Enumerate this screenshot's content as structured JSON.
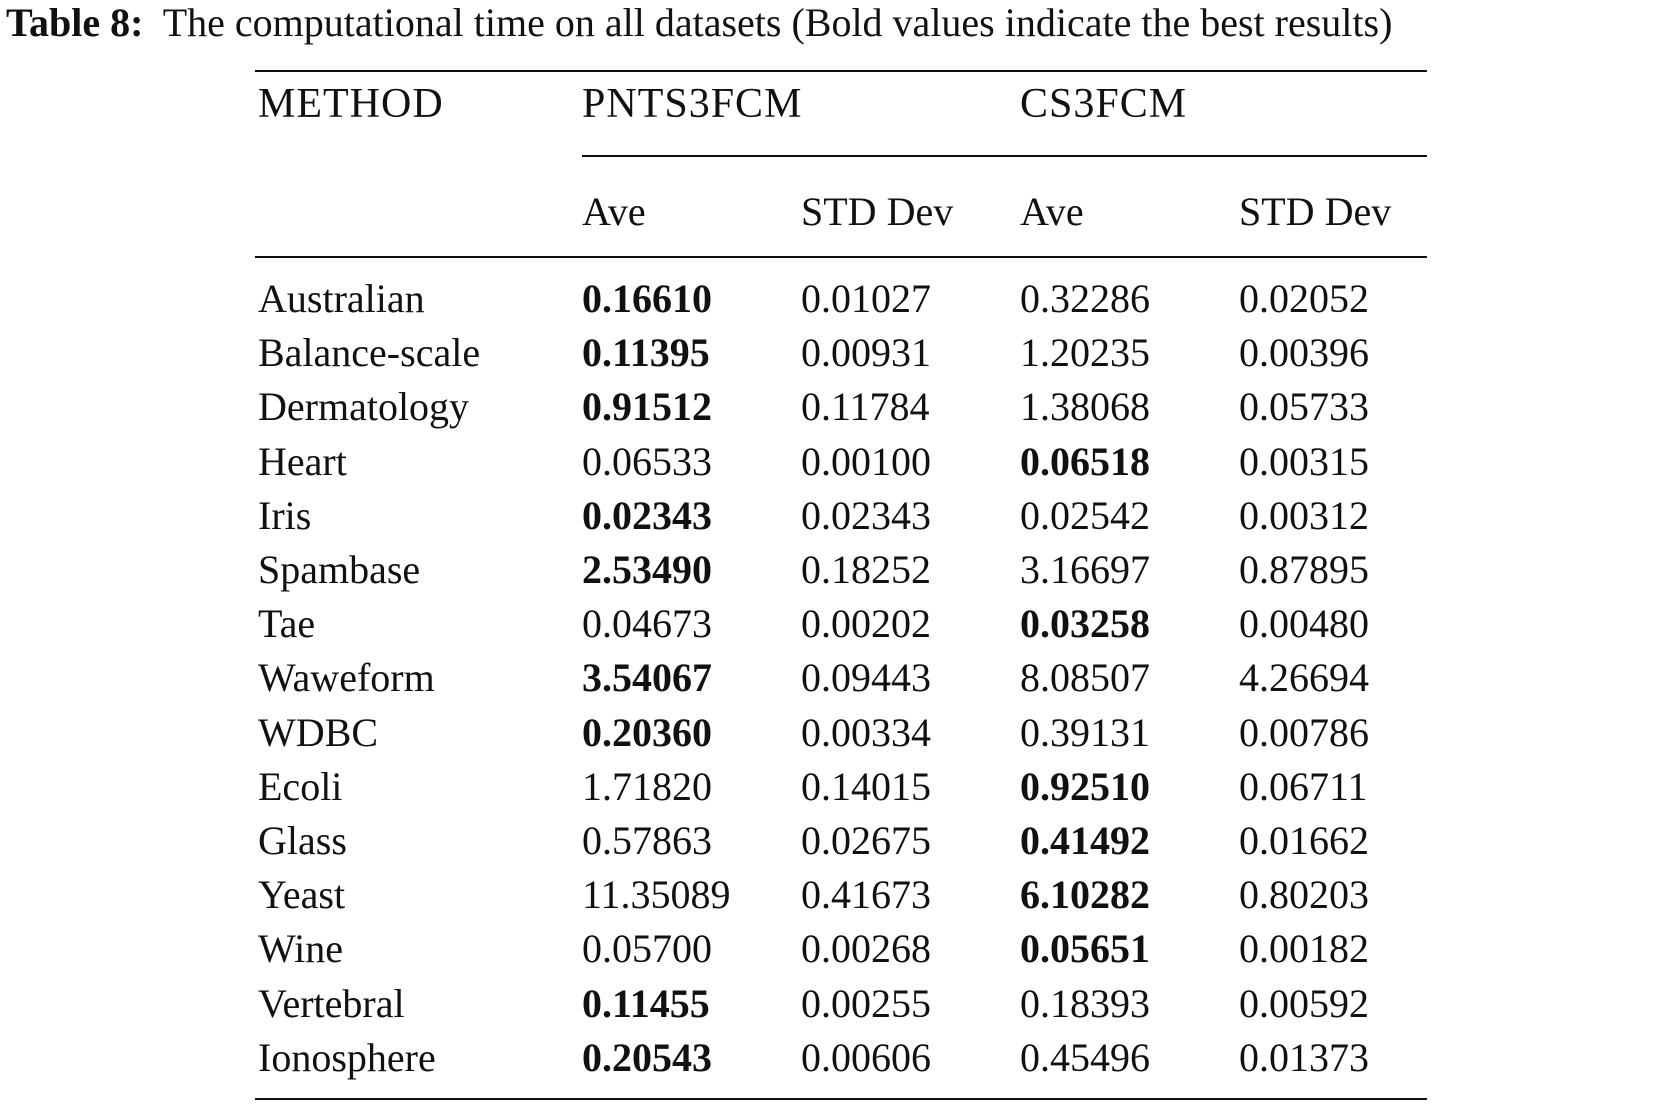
{
  "caption": {
    "label": "Table 8:",
    "text": "The computational time on all datasets (Bold values indicate the best results)"
  },
  "header": {
    "method": "METHOD",
    "group1": "PNTS3FCM",
    "group2": "CS3FCM",
    "sub": [
      "Ave",
      "STD Dev",
      "Ave",
      "STD Dev"
    ]
  },
  "rows": [
    {
      "name": "Australian",
      "values": [
        "0.16610",
        "0.01027",
        "0.32286",
        "0.02052"
      ],
      "bold": [
        0
      ]
    },
    {
      "name": "Balance-scale",
      "values": [
        "0.11395",
        "0.00931",
        "1.20235",
        "0.00396"
      ],
      "bold": [
        0
      ]
    },
    {
      "name": "Dermatology",
      "values": [
        "0.91512",
        "0.11784",
        "1.38068",
        "0.05733"
      ],
      "bold": [
        0
      ]
    },
    {
      "name": "Heart",
      "values": [
        "0.06533",
        "0.00100",
        "0.06518",
        "0.00315"
      ],
      "bold": [
        2
      ]
    },
    {
      "name": "Iris",
      "values": [
        "0.02343",
        "0.02343",
        "0.02542",
        "0.00312"
      ],
      "bold": [
        0
      ]
    },
    {
      "name": "Spambase",
      "values": [
        "2.53490",
        "0.18252",
        "3.16697",
        "0.87895"
      ],
      "bold": [
        0
      ]
    },
    {
      "name": "Tae",
      "values": [
        "0.04673",
        "0.00202",
        "0.03258",
        "0.00480"
      ],
      "bold": [
        2
      ]
    },
    {
      "name": "Waweform",
      "values": [
        "3.54067",
        "0.09443",
        "8.08507",
        "4.26694"
      ],
      "bold": [
        0
      ]
    },
    {
      "name": "WDBC",
      "values": [
        "0.20360",
        "0.00334",
        "0.39131",
        "0.00786"
      ],
      "bold": [
        0
      ]
    },
    {
      "name": "Ecoli",
      "values": [
        "1.71820",
        "0.14015",
        "0.92510",
        "0.06711"
      ],
      "bold": [
        2
      ]
    },
    {
      "name": "Glass",
      "values": [
        "0.57863",
        "0.02675",
        "0.41492",
        "0.01662"
      ],
      "bold": [
        2
      ]
    },
    {
      "name": "Yeast",
      "values": [
        "11.35089",
        "0.41673",
        "6.10282",
        "0.80203"
      ],
      "bold": [
        2
      ]
    },
    {
      "name": "Wine",
      "values": [
        "0.05700",
        "0.00268",
        "0.05651",
        "0.00182"
      ],
      "bold": [
        2
      ]
    },
    {
      "name": "Vertebral",
      "values": [
        "0.11455",
        "0.00255",
        "0.18393",
        "0.00592"
      ],
      "bold": [
        0
      ]
    },
    {
      "name": "Ionosphere",
      "values": [
        "0.20543",
        "0.00606",
        "0.45496",
        "0.01373"
      ],
      "bold": [
        0
      ]
    }
  ]
}
